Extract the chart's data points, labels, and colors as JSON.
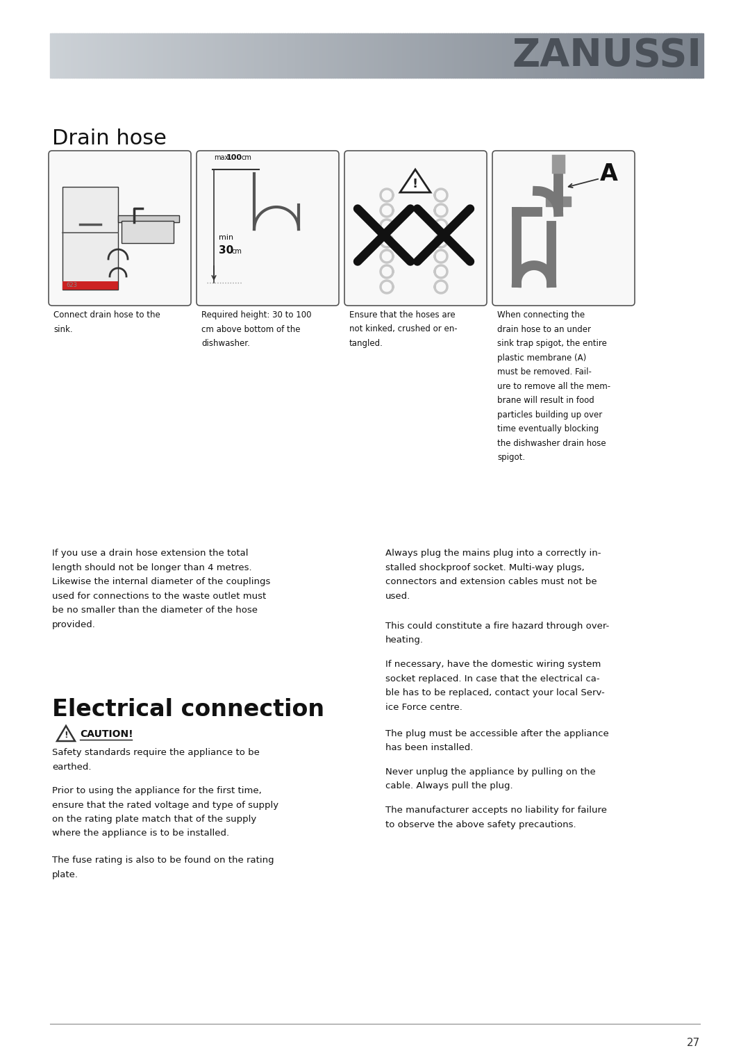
{
  "page_bg": "#ffffff",
  "header_text": "ZANUSSI",
  "header_text_color": "#4a5058",
  "section1_title": "Drain hose",
  "section2_title": "Electrical connection",
  "img_captions": [
    "Connect drain hose to the\nsink.",
    "Required height: 30 to 100\ncm above bottom of the\ndishwasher.",
    "Ensure that the hoses are\nnot kinked, crushed or en-\ntangled.",
    "When connecting the\ndrain hose to an under\nsink trap spigot, the entire\nplastic membrane (A)\nmust be removed. Fail-\nure to remove all the mem-\nbrane will result in food\nparticles building up over\ntime eventually blocking\nthe dishwasher drain hose\nspigot."
  ],
  "left_col_para1": "If you use a drain hose extension the total\nlength should not be longer than 4 metres.\nLikewise the internal diameter of the couplings\nused for connections to the waste outlet must\nbe no smaller than the diameter of the hose\nprovided.",
  "caution_label": "CAUTION!",
  "left_col_para2": "Safety standards require the appliance to be\nearthed.",
  "left_col_para3": "Prior to using the appliance for the first time,\nensure that the rated voltage and type of supply\non the rating plate match that of the supply\nwhere the appliance is to be installed.",
  "left_col_para4": "The fuse rating is also to be found on the rating\nplate.",
  "right_col_para1": "Always plug the mains plug into a correctly in-\nstalled shockproof socket. Multi-way plugs,\nconnectors and extension cables must not be\nused.",
  "right_col_para2": "This could constitute a fire hazard through over-\nheating.",
  "right_col_para3": "If necessary, have the domestic wiring system\nsocket replaced. In case that the electrical ca-\nble has to be replaced, contact your local Serv-\nice Force centre.",
  "right_col_para4": "The plug must be accessible after the appliance\nhas been installed.",
  "right_col_para5": "Never unplug the appliance by pulling on the\ncable. Always pull the plug.",
  "right_col_para6": "The manufacturer accepts no liability for failure\nto observe the above safety precautions.",
  "page_number": "27",
  "footer_line_color": "#888888"
}
